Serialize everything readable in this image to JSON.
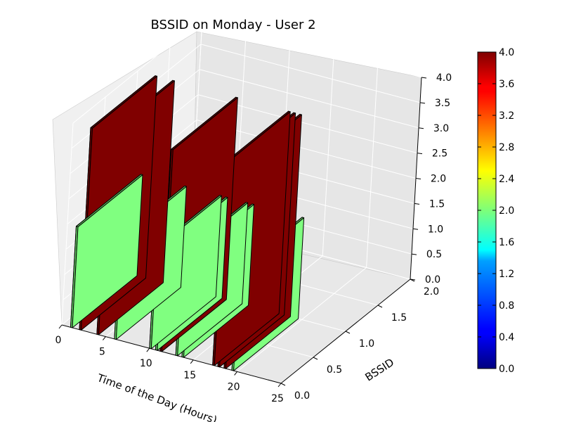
{
  "chart_data": {
    "type": "bar3d",
    "title": "BSSID on Monday - User 2",
    "xlabel": "Time of the Day (Hours)",
    "ylabel": "BSSID",
    "zlabel": "",
    "xlim": [
      0,
      25
    ],
    "ylim": [
      0,
      2
    ],
    "zlim": [
      0,
      4
    ],
    "x_ticks": [
      "0",
      "5",
      "10",
      "15",
      "20",
      "25"
    ],
    "y_ticks": [
      "0.0",
      "0.5",
      "1.0",
      "1.5",
      "2.0"
    ],
    "z_ticks": [
      "0.0",
      "0.5",
      "1.0",
      "1.5",
      "2.0",
      "2.5",
      "3.0",
      "3.5",
      "4.0"
    ],
    "bars": [
      {
        "x": 1.0,
        "y": 0.0,
        "dx": 0.2,
        "dy": 1.0,
        "z": 2.0
      },
      {
        "x": 2.0,
        "y": 0.0,
        "dx": 0.2,
        "dy": 1.0,
        "z": 4.0
      },
      {
        "x": 4.0,
        "y": 0.0,
        "dx": 0.2,
        "dy": 1.0,
        "z": 4.0
      },
      {
        "x": 6.0,
        "y": 0.0,
        "dx": 0.2,
        "dy": 1.0,
        "z": 2.0
      },
      {
        "x": 10.0,
        "y": 0.0,
        "dx": 0.2,
        "dy": 1.0,
        "z": 2.0
      },
      {
        "x": 10.7,
        "y": 0.0,
        "dx": 0.2,
        "dy": 1.0,
        "z": 2.0
      },
      {
        "x": 11.2,
        "y": 0.0,
        "dx": 0.2,
        "dy": 1.0,
        "z": 4.0
      },
      {
        "x": 13.0,
        "y": 0.0,
        "dx": 0.2,
        "dy": 1.0,
        "z": 2.0
      },
      {
        "x": 13.7,
        "y": 0.0,
        "dx": 0.2,
        "dy": 1.0,
        "z": 2.0
      },
      {
        "x": 17.2,
        "y": 0.0,
        "dx": 0.2,
        "dy": 1.0,
        "z": 4.0
      },
      {
        "x": 17.8,
        "y": 0.0,
        "dx": 0.2,
        "dy": 1.0,
        "z": 4.0
      },
      {
        "x": 18.5,
        "y": 0.0,
        "dx": 0.2,
        "dy": 1.0,
        "z": 4.0
      },
      {
        "x": 19.4,
        "y": 0.0,
        "dx": 0.2,
        "dy": 1.0,
        "z": 2.0
      }
    ],
    "colorbar": {
      "colormap": "jet",
      "range": [
        0.0,
        4.0
      ],
      "ticks": [
        "0.0",
        "0.4",
        "0.8",
        "1.2",
        "1.6",
        "2.0",
        "2.4",
        "2.8",
        "3.2",
        "3.6",
        "4.0"
      ]
    },
    "grid": true
  }
}
